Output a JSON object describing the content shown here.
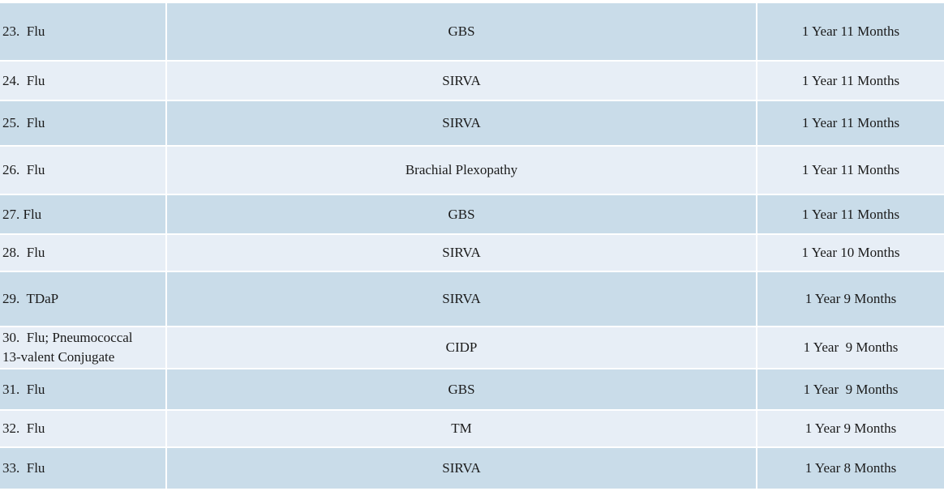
{
  "rows": [
    {
      "vaccine": "23.  Flu",
      "injury": "GBS",
      "time": "1 Year 11 Months"
    },
    {
      "vaccine": "24.  Flu",
      "injury": "SIRVA",
      "time": "1 Year 11 Months"
    },
    {
      "vaccine": "25.  Flu",
      "injury": "SIRVA",
      "time": "1 Year 11 Months"
    },
    {
      "vaccine": "26.  Flu",
      "injury": "Brachial Plexopathy",
      "time": "1 Year 11 Months"
    },
    {
      "vaccine": "27. Flu",
      "injury": "GBS",
      "time": "1 Year 11 Months"
    },
    {
      "vaccine": "28.  Flu",
      "injury": "SIRVA",
      "time": "1 Year 10 Months"
    },
    {
      "vaccine": "29.  TDaP",
      "injury": "SIRVA",
      "time": "1 Year 9 Months"
    },
    {
      "vaccine_line1": "30.  Flu; Pneumococcal",
      "vaccine_line2": "13-valent Conjugate",
      "injury": "CIDP",
      "time": "1 Year  9 Months"
    },
    {
      "vaccine": "31.  Flu",
      "injury": "GBS",
      "time": "1 Year  9 Months"
    },
    {
      "vaccine": "32.  Flu",
      "injury": "TM",
      "time": "1 Year 9 Months"
    },
    {
      "vaccine": "33.  Flu",
      "injury": "SIRVA",
      "time": "1 Year 8 Months"
    }
  ]
}
